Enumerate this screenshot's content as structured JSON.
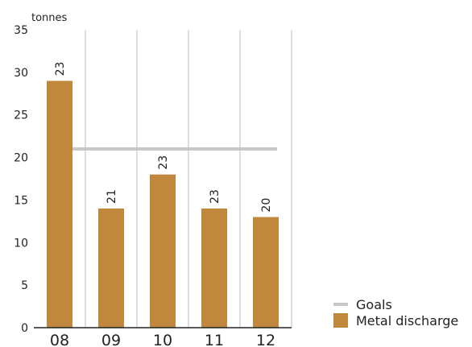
{
  "chart_data": {
    "type": "bar",
    "unit_label": "tonnes",
    "categories": [
      "08",
      "09",
      "10",
      "11",
      "12"
    ],
    "series": [
      {
        "name": "Metal discharge",
        "values": [
          29,
          14,
          18,
          14,
          13
        ],
        "color": "#c0883c"
      },
      {
        "name": "Goals",
        "values": [
          null,
          21,
          21,
          21,
          21
        ],
        "color": "#c8c8c8",
        "style": "line"
      }
    ],
    "data_labels": [
      "23",
      "21",
      "23",
      "23",
      "20"
    ],
    "ylim": [
      0,
      35
    ],
    "yticks": [
      0,
      5,
      10,
      15,
      20,
      25,
      30,
      35
    ],
    "legend_position": "bottom-right",
    "grid": "vertical-separators"
  },
  "legend": {
    "goals_label": "Goals",
    "metal_label": "Metal discharge"
  }
}
